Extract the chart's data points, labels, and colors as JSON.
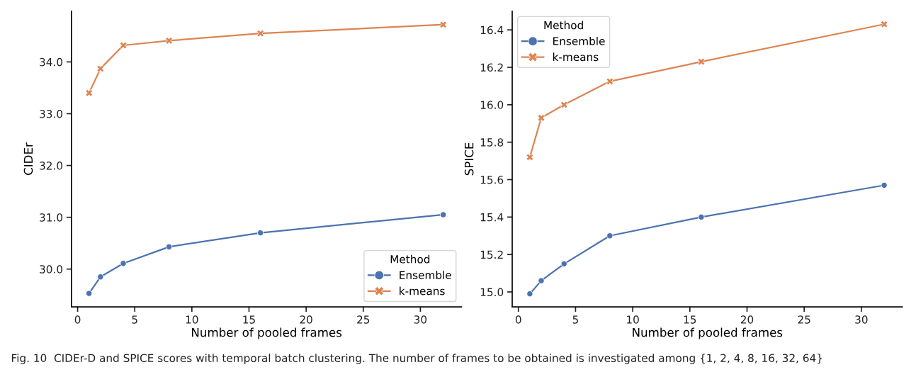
{
  "chart_data": [
    {
      "type": "line",
      "xlabel": "Number of pooled frames",
      "ylabel": "CIDEr",
      "legend_title": "Method",
      "legend": "bottom right",
      "grid": false,
      "xlim": [
        -0.54,
        33.6
      ],
      "xticks": [
        0,
        5,
        10,
        15,
        20,
        25,
        30
      ],
      "ylim": [
        29.27,
        34.98
      ],
      "yticks": [
        {
          "value": 30,
          "label": "30.0"
        },
        {
          "value": 31,
          "label": "31.0"
        },
        {
          "value": 32,
          "label": "32.0"
        },
        {
          "value": 33,
          "label": "33.0"
        },
        {
          "value": 34,
          "label": "34.0"
        }
      ],
      "x": [
        1,
        2,
        4,
        8,
        16,
        32
      ],
      "series": [
        {
          "name": "Ensemble",
          "color": "#4c72b0",
          "marker": "circle",
          "values": [
            29.53,
            29.85,
            30.11,
            30.43,
            30.7,
            31.05
          ]
        },
        {
          "name": "k-means",
          "color": "#dd8452",
          "marker": "cross",
          "values": [
            33.4,
            33.87,
            34.32,
            34.41,
            34.55,
            34.72
          ]
        }
      ],
      "annotations": [
        "Fig. 10  CIDEr-D and SPICE scores with temporal batch clustering. The number of frames to be obtained is investigated among {1, 2, 4, 8, 16, 32, 64}"
      ]
    },
    {
      "type": "line",
      "xlabel": "Number of pooled frames",
      "ylabel": "SPICE",
      "legend_title": "Method",
      "legend": "top left",
      "grid": false,
      "xlim": [
        -0.54,
        33.58
      ],
      "xticks": [
        0,
        5,
        10,
        15,
        20,
        25,
        30
      ],
      "ylim": [
        14.92,
        16.5
      ],
      "yticks": [
        {
          "value": 15,
          "label": "15.0"
        },
        {
          "value": 15.2,
          "label": "15.2"
        },
        {
          "value": 15.4,
          "label": "15.4"
        },
        {
          "value": 15.6,
          "label": "15.6"
        },
        {
          "value": 15.8,
          "label": "15.8"
        },
        {
          "value": 16,
          "label": "16.0"
        },
        {
          "value": 16.2,
          "label": "16.2"
        },
        {
          "value": 16.4,
          "label": "16.4"
        }
      ],
      "x": [
        1,
        2,
        4,
        8,
        16,
        32
      ],
      "series": [
        {
          "name": "Ensemble",
          "color": "#4c72b0",
          "marker": "circle",
          "values": [
            14.99,
            15.06,
            15.15,
            15.3,
            15.4,
            15.57
          ]
        },
        {
          "name": "k-means",
          "color": "#dd8452",
          "marker": "cross",
          "values": [
            15.72,
            15.93,
            16.0,
            16.125,
            16.23,
            16.43
          ]
        }
      ]
    }
  ]
}
